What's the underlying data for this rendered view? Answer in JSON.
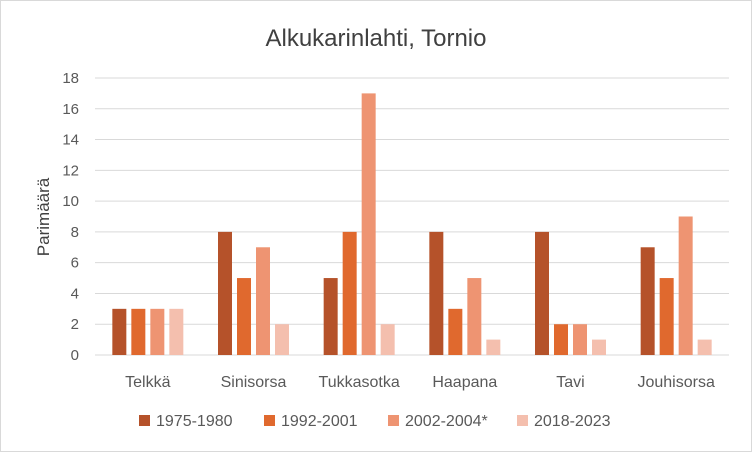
{
  "chart_data": {
    "type": "bar",
    "title": "Alkukarinlahti, Tornio",
    "xlabel": "",
    "ylabel": "Parimäärä",
    "ylim": [
      0,
      18
    ],
    "yticks": [
      0,
      2,
      4,
      6,
      8,
      10,
      12,
      14,
      16,
      18
    ],
    "grid": true,
    "legend_position": "bottom",
    "categories": [
      "Telkkä",
      "Sinisorsa",
      "Tukkasotka",
      "Haapana",
      "Tavi",
      "Jouhisorsa"
    ],
    "series": [
      {
        "name": "1975-1980",
        "color": "#b5522a",
        "values": [
          3,
          8,
          5,
          8,
          8,
          7
        ]
      },
      {
        "name": "1992-2001",
        "color": "#e0692e",
        "values": [
          3,
          5,
          8,
          3,
          2,
          5
        ]
      },
      {
        "name": "2002-2004*",
        "color": "#ee9472",
        "values": [
          3,
          7,
          17,
          5,
          2,
          9
        ]
      },
      {
        "name": "2018-2023",
        "color": "#f4bfae",
        "values": [
          3,
          2,
          2,
          1,
          1,
          1
        ]
      }
    ]
  }
}
